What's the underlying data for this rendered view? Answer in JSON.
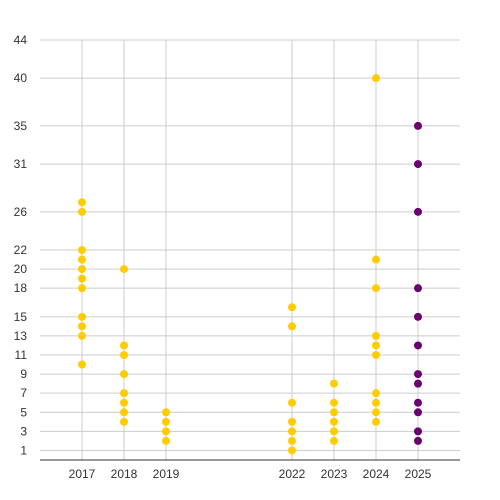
{
  "chart_data": {
    "type": "scatter",
    "x_categories": [
      "2017",
      "2018",
      "2019",
      "2022",
      "2023",
      "2024",
      "2025"
    ],
    "x_positions": [
      2017,
      2018,
      2019,
      2022,
      2023,
      2024,
      2025
    ],
    "x_range": [
      2016,
      2026
    ],
    "y_ticks": [
      1,
      3,
      5,
      7,
      9,
      11,
      13,
      15,
      18,
      20,
      22,
      26,
      31,
      35,
      40,
      44
    ],
    "ylim": [
      0,
      44
    ],
    "grid": true,
    "series": [
      {
        "color": "#FFCC00",
        "points": [
          {
            "x": 2017,
            "y": 10
          },
          {
            "x": 2017,
            "y": 13
          },
          {
            "x": 2017,
            "y": 14
          },
          {
            "x": 2017,
            "y": 15
          },
          {
            "x": 2017,
            "y": 18
          },
          {
            "x": 2017,
            "y": 19
          },
          {
            "x": 2017,
            "y": 20
          },
          {
            "x": 2017,
            "y": 21
          },
          {
            "x": 2017,
            "y": 22
          },
          {
            "x": 2017,
            "y": 26
          },
          {
            "x": 2017,
            "y": 27
          },
          {
            "x": 2018,
            "y": 4
          },
          {
            "x": 2018,
            "y": 5
          },
          {
            "x": 2018,
            "y": 6
          },
          {
            "x": 2018,
            "y": 7
          },
          {
            "x": 2018,
            "y": 9
          },
          {
            "x": 2018,
            "y": 11
          },
          {
            "x": 2018,
            "y": 12
          },
          {
            "x": 2018,
            "y": 20
          },
          {
            "x": 2019,
            "y": 2
          },
          {
            "x": 2019,
            "y": 3
          },
          {
            "x": 2019,
            "y": 4
          },
          {
            "x": 2019,
            "y": 5
          },
          {
            "x": 2022,
            "y": 1
          },
          {
            "x": 2022,
            "y": 2
          },
          {
            "x": 2022,
            "y": 3
          },
          {
            "x": 2022,
            "y": 4
          },
          {
            "x": 2022,
            "y": 6
          },
          {
            "x": 2022,
            "y": 14
          },
          {
            "x": 2022,
            "y": 16
          },
          {
            "x": 2023,
            "y": 2
          },
          {
            "x": 2023,
            "y": 3
          },
          {
            "x": 2023,
            "y": 4
          },
          {
            "x": 2023,
            "y": 5
          },
          {
            "x": 2023,
            "y": 6
          },
          {
            "x": 2023,
            "y": 8
          },
          {
            "x": 2024,
            "y": 4
          },
          {
            "x": 2024,
            "y": 5
          },
          {
            "x": 2024,
            "y": 6
          },
          {
            "x": 2024,
            "y": 7
          },
          {
            "x": 2024,
            "y": 11
          },
          {
            "x": 2024,
            "y": 12
          },
          {
            "x": 2024,
            "y": 13
          },
          {
            "x": 2024,
            "y": 18
          },
          {
            "x": 2024,
            "y": 21
          },
          {
            "x": 2024,
            "y": 40
          }
        ]
      },
      {
        "color": "#6B0070",
        "points": [
          {
            "x": 2025,
            "y": 2
          },
          {
            "x": 2025,
            "y": 3
          },
          {
            "x": 2025,
            "y": 5
          },
          {
            "x": 2025,
            "y": 6
          },
          {
            "x": 2025,
            "y": 8
          },
          {
            "x": 2025,
            "y": 9
          },
          {
            "x": 2025,
            "y": 12
          },
          {
            "x": 2025,
            "y": 15
          },
          {
            "x": 2025,
            "y": 18
          },
          {
            "x": 2025,
            "y": 26
          },
          {
            "x": 2025,
            "y": 31
          },
          {
            "x": 2025,
            "y": 35
          }
        ]
      }
    ]
  }
}
